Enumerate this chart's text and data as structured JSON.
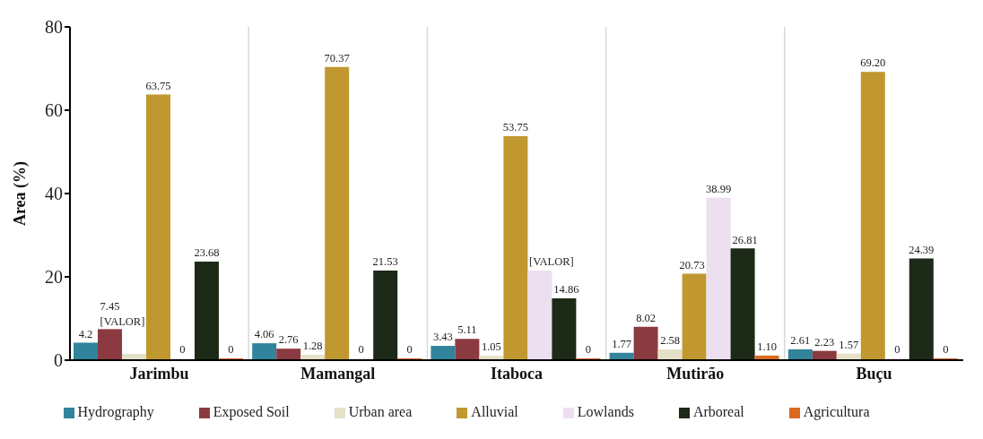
{
  "chart_data": {
    "type": "bar",
    "ylabel": "Area (%)",
    "categories": [
      "Jarimbu",
      "Mamangal",
      "Itaboca",
      "Mutirão",
      "Buçu"
    ],
    "series": [
      {
        "name": "Hydrography",
        "color": "#31849b",
        "values": [
          4.2,
          4.06,
          3.43,
          1.77,
          2.61
        ],
        "value_labels": [
          "4.2",
          "4.06",
          "3.43",
          "1.77",
          "2.61"
        ]
      },
      {
        "name": "Exposed Soil",
        "color": "#8c3a41",
        "values": [
          7.45,
          2.76,
          5.11,
          8.02,
          2.23
        ],
        "value_labels": [
          "7.45",
          "2.76",
          "5.11",
          "8.02",
          "2.23"
        ]
      },
      {
        "name": "Urban area",
        "color": "#e5e0c8",
        "values": [
          1.5,
          1.28,
          1.05,
          2.58,
          1.57
        ],
        "value_labels": [
          "[VALOR]",
          "1.28",
          "1.05",
          "2.58",
          "1.57"
        ]
      },
      {
        "name": "Alluvial",
        "color": "#c0982f",
        "values": [
          63.75,
          70.37,
          53.75,
          20.73,
          69.2
        ],
        "value_labels": [
          "63.75",
          "70.37",
          "53.75",
          "20.73",
          "69.20"
        ]
      },
      {
        "name": "Lowlands",
        "color": "#ebdff0",
        "values": [
          0,
          0,
          21.5,
          38.99,
          0
        ],
        "value_labels": [
          "0",
          "0",
          "[VALOR]",
          "38.99",
          "0"
        ]
      },
      {
        "name": "Arboreal",
        "color": "#1c2a17",
        "values": [
          23.68,
          21.53,
          14.86,
          26.81,
          24.39
        ],
        "value_labels": [
          "23.68",
          "21.53",
          "14.86",
          "26.81",
          "24.39"
        ]
      },
      {
        "name": "Agricultura",
        "color": "#d96a1f",
        "values": [
          0,
          0,
          0,
          1.1,
          0
        ],
        "value_labels": [
          "0",
          "0",
          "0",
          "1.10",
          "0"
        ]
      }
    ],
    "ylim": [
      0,
      80
    ],
    "yticks": [
      0,
      20,
      40,
      60,
      80
    ],
    "grid": "x",
    "legend": "bottom"
  }
}
